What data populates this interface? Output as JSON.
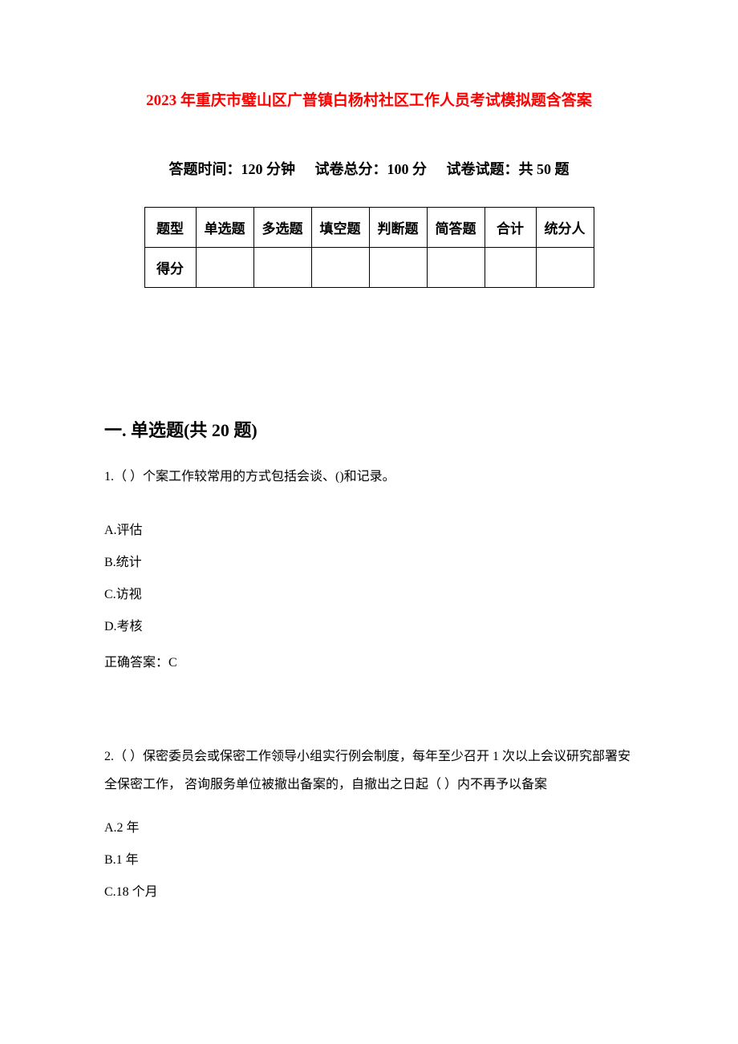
{
  "title": "2023 年重庆市璧山区广普镇白杨村社区工作人员考试模拟题含答案",
  "examInfo": {
    "time": "答题时间：120 分钟",
    "totalScore": "试卷总分：100 分",
    "totalQuestions": "试卷试题：共 50 题"
  },
  "table": {
    "headers": [
      "题型",
      "单选题",
      "多选题",
      "填空题",
      "判断题",
      "简答题",
      "合计",
      "统分人"
    ],
    "row2Label": "得分"
  },
  "section1": {
    "heading": "一. 单选题(共 20 题)",
    "q1": {
      "text": "1.（ ）个案工作较常用的方式包括会谈、()和记录。",
      "optA": "A.评估",
      "optB": "B.统计",
      "optC": "C.访视",
      "optD": "D.考核",
      "answer": "正确答案：C"
    },
    "q2": {
      "text": "2.（ ）保密委员会或保密工作领导小组实行例会制度，每年至少召开 1 次以上会议研究部署安全保密工作，  咨询服务单位被撤出备案的，自撤出之日起（ ）内不再予以备案",
      "optA": "A.2 年",
      "optB": "B.1 年",
      "optC": "C.18 个月"
    }
  }
}
